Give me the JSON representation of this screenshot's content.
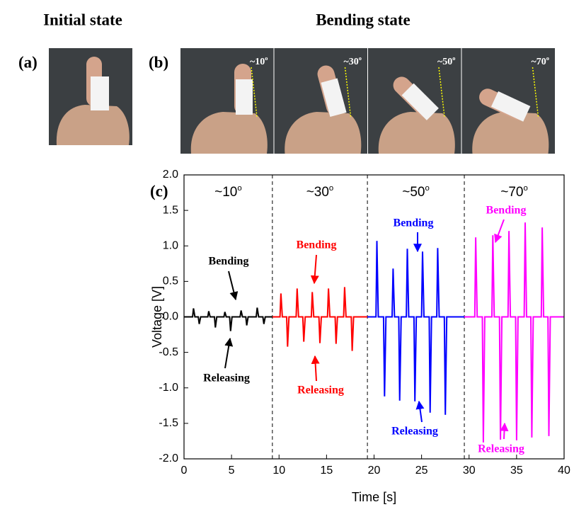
{
  "figure": {
    "headers": [
      "Initial state",
      "Bending state"
    ],
    "panel_labels": [
      "(a)",
      "(b)",
      "(c)"
    ],
    "photo_labels": [
      {
        "text": "~10",
        "sup": "o"
      },
      {
        "text": "~30",
        "sup": "o"
      },
      {
        "text": "~50",
        "sup": "o"
      },
      {
        "text": "~70",
        "sup": "o"
      }
    ]
  },
  "chart_data": {
    "type": "line",
    "xlabel": "Time [s]",
    "ylabel": "Voltage [V]",
    "xlim": [
      0,
      40
    ],
    "ylim": [
      -2,
      2
    ],
    "xticks": [
      0,
      5,
      10,
      15,
      20,
      25,
      30,
      35,
      40
    ],
    "yticks": [
      {
        "value": 2,
        "label": "2.0"
      },
      {
        "value": 1.5,
        "label": "1.5"
      },
      {
        "value": 1,
        "label": "1.0"
      },
      {
        "value": 0.5,
        "label": "0.5"
      },
      {
        "value": 0,
        "label": "0.0"
      },
      {
        "value": -0.5,
        "label": "-0.5"
      },
      {
        "value": -1,
        "label": "-1.0"
      },
      {
        "value": -1.5,
        "label": "-1.5"
      },
      {
        "value": -2,
        "label": "-2.0"
      }
    ],
    "dividers": [
      9.3,
      19.3,
      29.5
    ],
    "region_labels": [
      {
        "text": "~10",
        "sup": "o"
      },
      {
        "text": "~30",
        "sup": "o"
      },
      {
        "text": "~50",
        "sup": "o"
      },
      {
        "text": "~70",
        "sup": "o"
      }
    ],
    "series": [
      {
        "color": "#000000",
        "x": [
          0,
          0.9,
          1.0,
          1.15,
          1.5,
          1.6,
          1.75,
          2.5,
          2.6,
          2.75,
          3.2,
          3.3,
          3.45,
          4.2,
          4.3,
          4.45,
          4.8,
          4.9,
          5.05,
          5.9,
          6.0,
          6.15,
          6.5,
          6.6,
          6.75,
          7.6,
          7.7,
          7.85,
          8.3,
          8.4,
          8.55,
          9.3
        ],
        "values": [
          0,
          0,
          0.12,
          0,
          0,
          -0.1,
          0,
          0,
          0.08,
          0,
          0,
          -0.15,
          0,
          0,
          0.07,
          0,
          0,
          -0.2,
          0,
          0,
          0.09,
          0,
          0,
          -0.12,
          0,
          0,
          0.13,
          0,
          0,
          -0.1,
          0,
          0
        ],
        "annotations": [
          "Bending",
          "Releasing"
        ]
      },
      {
        "color": "#ff0000",
        "x": [
          9.3,
          10.1,
          10.2,
          10.35,
          10.8,
          10.9,
          11.05,
          11.8,
          11.9,
          12.05,
          12.5,
          12.6,
          12.75,
          13.4,
          13.5,
          13.65,
          14.2,
          14.3,
          14.45,
          15.1,
          15.2,
          15.35,
          15.9,
          16.0,
          16.15,
          16.8,
          16.9,
          17.05,
          17.6,
          17.7,
          17.85,
          19.3
        ],
        "values": [
          0,
          0,
          0.33,
          0,
          0,
          -0.42,
          0,
          0,
          0.4,
          0,
          0,
          -0.35,
          0,
          0,
          0.35,
          0,
          0,
          -0.37,
          0,
          0,
          0.4,
          0,
          0,
          -0.38,
          0,
          0,
          0.42,
          0,
          0,
          -0.48,
          0,
          0
        ],
        "annotations": [
          "Bending",
          "Releasing"
        ]
      },
      {
        "color": "#0000ff",
        "x": [
          19.3,
          20.2,
          20.3,
          20.45,
          21.0,
          21.1,
          21.25,
          21.9,
          22.0,
          22.15,
          22.6,
          22.7,
          22.85,
          23.4,
          23.5,
          23.65,
          24.2,
          24.3,
          24.45,
          25.0,
          25.1,
          25.25,
          25.8,
          25.9,
          26.05,
          26.6,
          26.7,
          26.85,
          27.4,
          27.5,
          27.65,
          29.5
        ],
        "values": [
          0,
          0,
          1.07,
          0,
          0,
          -1.12,
          0,
          0,
          0.68,
          0,
          0,
          -1.18,
          0,
          0,
          0.96,
          0,
          0,
          -1.19,
          0,
          0,
          0.92,
          0,
          0,
          -1.35,
          0,
          0,
          0.97,
          0,
          0,
          -1.38,
          0,
          0
        ],
        "annotations": [
          "Bending",
          "Releasing"
        ]
      },
      {
        "color": "#ff00ff",
        "x": [
          29.5,
          30.6,
          30.7,
          30.85,
          31.4,
          31.5,
          31.65,
          32.4,
          32.5,
          32.65,
          33.2,
          33.3,
          33.45,
          34.1,
          34.2,
          34.35,
          34.9,
          35.0,
          35.15,
          35.8,
          35.9,
          36.05,
          36.5,
          36.6,
          36.75,
          37.6,
          37.7,
          37.85,
          38.3,
          38.4,
          38.55,
          40
        ],
        "values": [
          0,
          0,
          1.12,
          0,
          0,
          -1.77,
          0,
          0,
          1.15,
          0,
          0,
          -1.73,
          0,
          0,
          1.21,
          0,
          0,
          -1.74,
          0,
          0,
          1.33,
          0,
          0,
          -1.7,
          0,
          0,
          1.26,
          0,
          0,
          -1.68,
          0,
          0
        ],
        "annotations": [
          "Bending",
          "Releasing"
        ]
      }
    ]
  }
}
